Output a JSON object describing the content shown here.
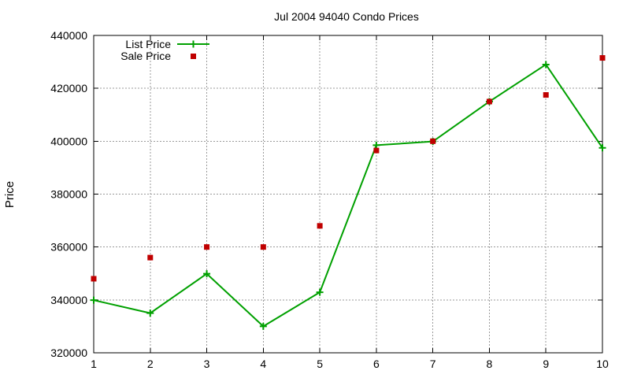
{
  "chart_data": {
    "type": "line",
    "title": "Jul 2004 94040 Condo Prices",
    "xlabel": "",
    "ylabel": "Price",
    "x": [
      1,
      2,
      3,
      4,
      5,
      6,
      7,
      8,
      9,
      10
    ],
    "xlim": [
      1,
      10
    ],
    "ylim": [
      320000,
      440000
    ],
    "yticks": [
      320000,
      340000,
      360000,
      380000,
      400000,
      420000,
      440000
    ],
    "xticks": [
      1,
      2,
      3,
      4,
      5,
      6,
      7,
      8,
      9,
      10
    ],
    "grid": true,
    "legend_position": "top-left",
    "series": [
      {
        "name": "List Price",
        "style": "line+cross",
        "color": "#00a000",
        "values": [
          339900,
          335000,
          349900,
          330000,
          342900,
          398500,
          399900,
          415000,
          429000,
          397500
        ]
      },
      {
        "name": "Sale Price",
        "style": "square-points",
        "color": "#c00000",
        "values": [
          348000,
          356000,
          360000,
          360000,
          368000,
          396500,
          400000,
          415000,
          417500,
          431500
        ]
      }
    ]
  }
}
